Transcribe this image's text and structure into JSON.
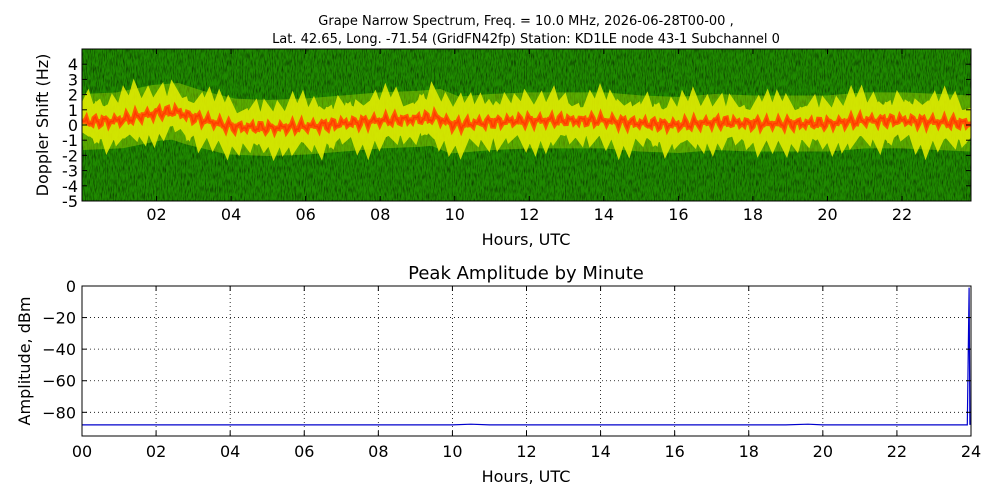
{
  "chart_data": [
    {
      "type": "heatmap",
      "title_line1": "Grape Narrow Spectrum, Freq. = 10.0 MHz, 2026-06-28T00-00 ,",
      "title_line2": "Lat.  42.65, Long. -71.54 (GridFN42fp) Station: KD1LE node 43-1 Subchannel 0",
      "xlabel": "Hours, UTC",
      "ylabel": "Doppler Shift (Hz)",
      "xlim": [
        0,
        23.85
      ],
      "ylim": [
        -5,
        5
      ],
      "xtick_values": [
        2,
        4,
        6,
        8,
        10,
        12,
        14,
        16,
        18,
        20,
        22
      ],
      "xticks": [
        "02",
        "04",
        "06",
        "08",
        "10",
        "12",
        "14",
        "16",
        "18",
        "20",
        "22"
      ],
      "ytick_values": [
        4,
        3,
        2,
        1,
        0,
        -1,
        -2,
        -3,
        -4,
        -5
      ],
      "yticks": [
        "4",
        "3",
        "2",
        "1",
        "0",
        "-1",
        "-2",
        "-3",
        "-4",
        "-5"
      ],
      "colors": {
        "background": "#1f8a00",
        "mid": "#c8e000",
        "peak": "#ff5a00"
      },
      "doppler_trace": {
        "hours": [
          0,
          1,
          2,
          2.5,
          3,
          4,
          5,
          6,
          7,
          8,
          9,
          9.5,
          10,
          11,
          12,
          13,
          14,
          15,
          16,
          17,
          18,
          19,
          20,
          21,
          22,
          23,
          23.85
        ],
        "shift_hz": [
          0.2,
          0.3,
          0.8,
          0.9,
          0.5,
          -0.1,
          -0.2,
          -0.1,
          0.1,
          0.3,
          0.4,
          0.5,
          0.0,
          0.2,
          0.3,
          0.3,
          0.3,
          0.1,
          0.0,
          0.2,
          0.1,
          0.1,
          0.1,
          0.3,
          0.3,
          0.2,
          0.1
        ]
      },
      "grid": false
    },
    {
      "type": "line",
      "title": "Peak Amplitude by Minute",
      "xlabel": "Hours, UTC",
      "ylabel": "Amplitude, dBm",
      "xlim": [
        0,
        24
      ],
      "ylim": [
        -95,
        0
      ],
      "xtick_values": [
        0,
        2,
        4,
        6,
        8,
        10,
        12,
        14,
        16,
        18,
        20,
        22,
        24
      ],
      "xticks": [
        "00",
        "02",
        "04",
        "06",
        "08",
        "10",
        "12",
        "14",
        "16",
        "18",
        "20",
        "22",
        "24"
      ],
      "ytick_values": [
        0,
        -20,
        -40,
        -60,
        -80
      ],
      "yticks": [
        "0",
        "−20",
        "−40",
        "−60",
        "−80"
      ],
      "grid": true,
      "series": [
        {
          "color": "#0000cc",
          "x": [
            0,
            1,
            2,
            3,
            4,
            5,
            6,
            7,
            8,
            9,
            10,
            10.5,
            11,
            12,
            13,
            14,
            15,
            16,
            17,
            18,
            19,
            19.6,
            20,
            21,
            22,
            23,
            23.9,
            23.95,
            23.97
          ],
          "y": [
            -88,
            -88,
            -88,
            -88,
            -88,
            -88,
            -88,
            -88,
            -88,
            -88,
            -88,
            -87.5,
            -88,
            -88,
            -88,
            -88,
            -88,
            -88,
            -88,
            -88,
            -88,
            -87.5,
            -88,
            -88,
            -88,
            -88,
            -88,
            -1,
            -88
          ]
        }
      ]
    }
  ]
}
